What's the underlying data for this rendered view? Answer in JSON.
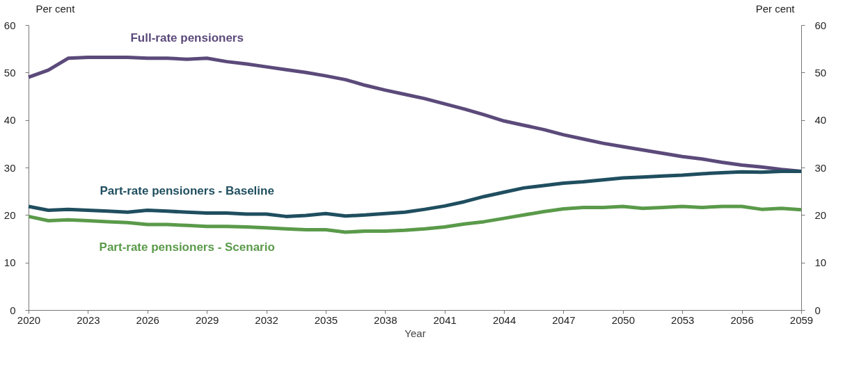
{
  "chart_data": {
    "type": "line",
    "xlabel": "Year",
    "ylabel": "Per cent",
    "y2label": "Per cent",
    "x": [
      2020,
      2021,
      2022,
      2023,
      2024,
      2025,
      2026,
      2027,
      2028,
      2029,
      2030,
      2031,
      2032,
      2033,
      2034,
      2035,
      2036,
      2037,
      2038,
      2039,
      2040,
      2041,
      2042,
      2043,
      2044,
      2045,
      2046,
      2047,
      2048,
      2049,
      2050,
      2051,
      2052,
      2053,
      2054,
      2055,
      2056,
      2057,
      2058,
      2059
    ],
    "series": [
      {
        "name": "Full-rate pensioners",
        "color": "#5b4a7a",
        "values": [
          49,
          50.5,
          53,
          53.2,
          53.2,
          53.2,
          53,
          53,
          52.8,
          53,
          52.3,
          51.8,
          51.2,
          50.6,
          50,
          49.3,
          48.5,
          47.3,
          46.3,
          45.4,
          44.5,
          43.4,
          42.3,
          41.1,
          39.8,
          38.9,
          38,
          36.9,
          36,
          35.1,
          34.4,
          33.7,
          33,
          32.3,
          31.8,
          31.1,
          30.5,
          30.1,
          29.6,
          29.2
        ]
      },
      {
        "name": "Part-rate pensioners - Baseline",
        "color": "#1f4e5f",
        "values": [
          21.8,
          21,
          21.2,
          21,
          20.8,
          20.6,
          21,
          20.8,
          20.6,
          20.4,
          20.4,
          20.2,
          20.2,
          19.7,
          19.9,
          20.3,
          19.8,
          20,
          20.3,
          20.6,
          21.2,
          21.9,
          22.8,
          23.9,
          24.8,
          25.7,
          26.2,
          26.7,
          27,
          27.4,
          27.8,
          28,
          28.2,
          28.4,
          28.7,
          28.9,
          29.1,
          29,
          29.2,
          29.2
        ]
      },
      {
        "name": "Part-rate pensioners - Scenario",
        "color": "#5a9a4a",
        "values": [
          19.7,
          18.8,
          19,
          18.8,
          18.6,
          18.4,
          18,
          18,
          17.8,
          17.6,
          17.6,
          17.5,
          17.3,
          17.1,
          16.9,
          16.9,
          16.4,
          16.6,
          16.6,
          16.8,
          17.1,
          17.5,
          18.1,
          18.6,
          19.3,
          20,
          20.7,
          21.3,
          21.6,
          21.6,
          21.8,
          21.4,
          21.6,
          21.8,
          21.6,
          21.8,
          21.8,
          21.2,
          21.4,
          21.1
        ]
      }
    ],
    "xlim": [
      2020,
      2059
    ],
    "xticks": [
      2020,
      2023,
      2026,
      2029,
      2032,
      2035,
      2038,
      2041,
      2044,
      2047,
      2050,
      2053,
      2056,
      2059
    ],
    "ylim": [
      0,
      60
    ],
    "yticks": [
      0,
      10,
      20,
      30,
      40,
      50,
      60
    ],
    "y2lim": [
      0,
      60
    ],
    "y2ticks": [
      0,
      10,
      20,
      30,
      40,
      50,
      60
    ],
    "grid": false,
    "legend": false,
    "marker": "none",
    "line_style": "solid"
  }
}
